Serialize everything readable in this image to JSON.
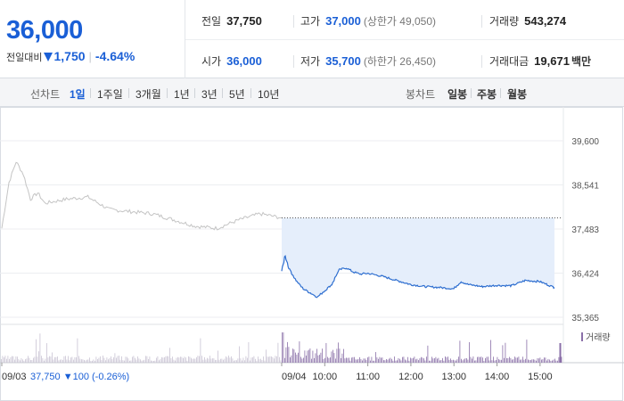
{
  "quote": {
    "price": "36,000",
    "change_label": "전일대비",
    "change": "1,750",
    "change_pct": "-4.64%",
    "prev_close_label": "전일",
    "prev_close": "37,750",
    "high_label": "고가",
    "high": "37,000",
    "upper_limit_note": "(상한가 49,050)",
    "volume_label": "거래량",
    "volume": "543,274",
    "open_label": "시가",
    "open": "36,000",
    "low_label": "저가",
    "low": "35,700",
    "lower_limit_note": "(하한가 26,450)",
    "amount_label": "거래대금",
    "amount": "19,671",
    "amount_unit": "백만"
  },
  "tabs": {
    "line_label": "선차트",
    "line_tabs": [
      "1일",
      "1주일",
      "3개월",
      "1년",
      "3년",
      "5년",
      "10년"
    ],
    "active": "1일",
    "candle_label": "봉차트",
    "candle_tabs": [
      "일봉",
      "주봉",
      "월봉"
    ]
  },
  "chart_data": {
    "type": "line",
    "y_ticks": [
      "39,600",
      "38,541",
      "37,483",
      "36,424",
      "35,365"
    ],
    "ylim": [
      35365,
      39600
    ],
    "x_ticks": [
      "09/04",
      "10:00",
      "11:00",
      "12:00",
      "13:00",
      "14:00",
      "15:00"
    ],
    "prev_day_label": "09/03",
    "prev_day_info": "37,750 ▼100 (-0.26%)",
    "prev_close_ref": 37750,
    "volume_legend": "거래량",
    "colors": {
      "today": "#2f6fd0",
      "prev": "#c4c4c4",
      "fill": "#e5eefb",
      "volume": "#8a6fa8"
    },
    "series": [
      {
        "x": [
          "09:00",
          "09:05",
          "09:10",
          "09:20",
          "09:30",
          "09:40",
          "09:50",
          "10:00",
          "10:10",
          "10:20",
          "10:30",
          "10:40",
          "10:50",
          "11:00",
          "11:20",
          "11:40",
          "12:00",
          "12:20",
          "12:40",
          "13:00",
          "13:10",
          "13:20",
          "13:40",
          "14:00",
          "14:20",
          "14:40",
          "15:00",
          "15:20"
        ],
        "values": [
          36450,
          36850,
          36550,
          36250,
          36050,
          35950,
          35850,
          36000,
          36150,
          36500,
          36550,
          36450,
          36400,
          36420,
          36350,
          36250,
          36150,
          36100,
          36080,
          36050,
          36220,
          36150,
          36100,
          36130,
          36120,
          36250,
          36220,
          36080
        ]
      },
      {
        "x": [
          "09:00",
          "09:10",
          "09:20",
          "09:30",
          "09:40",
          "09:50",
          "10:00",
          "10:30",
          "11:00",
          "11:30",
          "12:00",
          "12:30",
          "13:00",
          "13:30",
          "14:00",
          "14:30",
          "15:00",
          "15:30"
        ],
        "values": [
          37500,
          38600,
          39100,
          38800,
          38200,
          38350,
          38100,
          38200,
          38250,
          37950,
          37900,
          37850,
          37700,
          37550,
          37500,
          37700,
          37850,
          37750
        ]
      }
    ]
  }
}
